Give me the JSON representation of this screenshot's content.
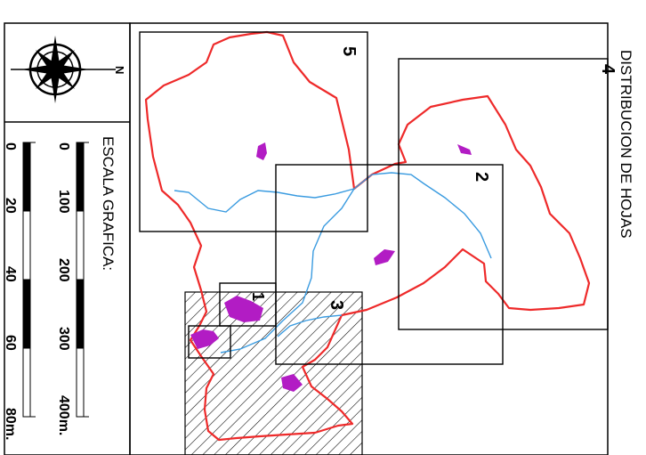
{
  "title": "DISTRIBUCION   DE   HOJAS",
  "scale": {
    "label": "ESCALA   GRAFICA:",
    "bar1_ticks": [
      "0",
      "100",
      "200",
      "300",
      "400m."
    ],
    "bar2_ticks": [
      "0",
      "20",
      "40",
      "60",
      "80m."
    ]
  },
  "compass": {
    "north_label": "N"
  },
  "sheets": [
    {
      "id": "5",
      "label": "5"
    },
    {
      "id": "4",
      "label": "4"
    },
    {
      "id": "2",
      "label": "2"
    },
    {
      "id": "3",
      "label": "3"
    },
    {
      "id": "1",
      "label": "1"
    }
  ],
  "colors": {
    "boundary": "#ee2a2a",
    "river": "#3a9be0",
    "urban": "#b21cc4",
    "frame": "#000000",
    "hatch": "#000000"
  }
}
